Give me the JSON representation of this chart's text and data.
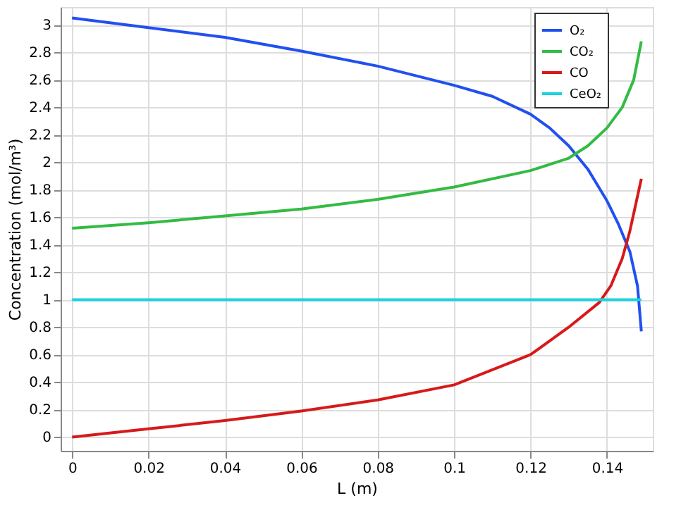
{
  "chart_data": {
    "type": "line",
    "xlabel": "L (m)",
    "ylabel": "Concentration (mol/m³)",
    "xlim": [
      -0.003,
      0.152
    ],
    "ylim": [
      -0.1,
      3.13
    ],
    "xticks": [
      0,
      0.02,
      0.04,
      0.06,
      0.08,
      0.1,
      0.12,
      0.14
    ],
    "yticks": [
      0,
      0.2,
      0.4,
      0.6,
      0.8,
      1,
      1.2,
      1.4,
      1.6,
      1.8,
      2,
      2.2,
      2.4,
      2.6,
      2.8,
      3
    ],
    "grid": true,
    "legend": "top right",
    "marker": "none",
    "line_style": "solid",
    "series": [
      {
        "name": "O₂",
        "color": "#2150ef",
        "x": [
          0,
          0.02,
          0.04,
          0.06,
          0.08,
          0.1,
          0.11,
          0.12,
          0.125,
          0.13,
          0.135,
          0.14,
          0.143,
          0.146,
          0.148,
          0.149
        ],
        "values": [
          3.05,
          2.98,
          2.91,
          2.81,
          2.7,
          2.56,
          2.48,
          2.35,
          2.25,
          2.12,
          1.95,
          1.72,
          1.55,
          1.35,
          1.1,
          0.77
        ]
      },
      {
        "name": "CO₂",
        "color": "#33bb44",
        "x": [
          0,
          0.02,
          0.04,
          0.06,
          0.08,
          0.1,
          0.12,
          0.13,
          0.135,
          0.14,
          0.144,
          0.147,
          0.149
        ],
        "values": [
          1.52,
          1.56,
          1.61,
          1.66,
          1.73,
          1.82,
          1.94,
          2.03,
          2.12,
          2.25,
          2.4,
          2.6,
          2.88
        ]
      },
      {
        "name": "CO",
        "color": "#d61a1a",
        "x": [
          0,
          0.02,
          0.04,
          0.06,
          0.08,
          0.1,
          0.12,
          0.13,
          0.138,
          0.141,
          0.144,
          0.146,
          0.149
        ],
        "values": [
          0,
          0.06,
          0.12,
          0.19,
          0.27,
          0.38,
          0.6,
          0.8,
          0.98,
          1.1,
          1.3,
          1.5,
          1.88
        ]
      },
      {
        "name": "CeO₂",
        "color": "#19d3e0",
        "x": [
          0,
          0.149
        ],
        "values": [
          1,
          1
        ]
      }
    ]
  }
}
